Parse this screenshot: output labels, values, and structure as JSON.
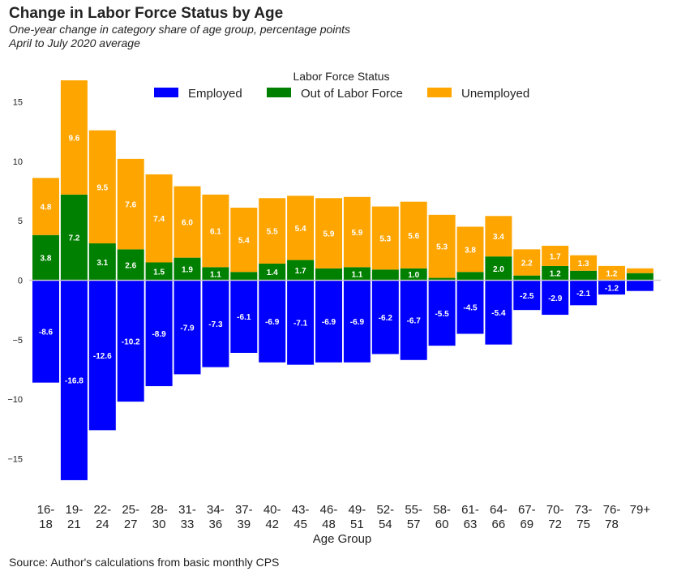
{
  "header": {
    "title": "Change in Labor Force Status by Age",
    "subtitle": "One-year change in category share of age group, percentage points",
    "subtitle2": "April to July 2020 average"
  },
  "footer": {
    "source": "Source: Author's calculations from basic monthly CPS"
  },
  "chart_data": {
    "type": "bar",
    "stacked": true,
    "title": "Change in Labor Force Status by Age",
    "xlabel": "Age Group",
    "ylabel": "",
    "ylim": [
      -17.8,
      17.8
    ],
    "yticks": [
      -15,
      -10,
      -5,
      0,
      5,
      10,
      15
    ],
    "grid": false,
    "legend": {
      "title": "Labor Force Status",
      "placement": "top-center"
    },
    "categories": [
      [
        "16-",
        "18"
      ],
      [
        "19-",
        "21"
      ],
      [
        "22-",
        "24"
      ],
      [
        "25-",
        "27"
      ],
      [
        "28-",
        "30"
      ],
      [
        "31-",
        "33"
      ],
      [
        "34-",
        "36"
      ],
      [
        "37-",
        "39"
      ],
      [
        "40-",
        "42"
      ],
      [
        "43-",
        "45"
      ],
      [
        "46-",
        "48"
      ],
      [
        "49-",
        "51"
      ],
      [
        "52-",
        "54"
      ],
      [
        "55-",
        "57"
      ],
      [
        "58-",
        "60"
      ],
      [
        "61-",
        "63"
      ],
      [
        "64-",
        "66"
      ],
      [
        "67-",
        "69"
      ],
      [
        "70-",
        "72"
      ],
      [
        "73-",
        "75"
      ],
      [
        "76-",
        "78"
      ],
      [
        "79+",
        ""
      ]
    ],
    "series": [
      {
        "name": "Employed",
        "color": "#0000ff",
        "values": [
          -8.6,
          -16.8,
          -12.6,
          -10.2,
          -8.9,
          -7.9,
          -7.3,
          -6.1,
          -6.9,
          -7.1,
          -6.9,
          -6.9,
          -6.2,
          -6.7,
          -5.5,
          -4.5,
          -5.4,
          -2.5,
          -2.9,
          -2.1,
          -1.2,
          -0.9
        ],
        "labels": [
          "-8.6",
          "-16.8",
          "-12.6",
          "-10.2",
          "-8.9",
          "-7.9",
          "-7.3",
          "-6.1",
          "-6.9",
          "-7.1",
          "-6.9",
          "-6.9",
          "-6.2",
          "-6.7",
          "-5.5",
          "-4.5",
          "-5.4",
          "-2.5",
          "-2.9",
          "-2.1",
          "-1.2",
          ""
        ]
      },
      {
        "name": "Out of Labor Force",
        "color": "#008000",
        "values": [
          3.8,
          7.2,
          3.1,
          2.6,
          1.5,
          1.9,
          1.1,
          0.7,
          1.4,
          1.7,
          1.0,
          1.1,
          0.9,
          1.0,
          0.2,
          0.7,
          2.0,
          0.4,
          1.2,
          0.8,
          0.0,
          0.6
        ],
        "labels": [
          "3.8",
          "7.2",
          "3.1",
          "2.6",
          "1.5",
          "1.9",
          "1.1",
          "",
          "1.4",
          "1.7",
          "",
          "1.1",
          "",
          "1.0",
          "",
          "",
          "2.0",
          "",
          "1.2",
          "",
          "",
          ""
        ]
      },
      {
        "name": "Unemployed",
        "color": "#ffa500",
        "values": [
          4.8,
          9.6,
          9.5,
          7.6,
          7.4,
          6.0,
          6.1,
          5.4,
          5.5,
          5.4,
          5.9,
          5.9,
          5.3,
          5.6,
          5.3,
          3.8,
          3.4,
          2.2,
          1.7,
          1.3,
          1.2,
          0.4
        ],
        "labels": [
          "4.8",
          "9.6",
          "9.5",
          "7.6",
          "7.4",
          "6.0",
          "6.1",
          "5.4",
          "5.5",
          "5.4",
          "5.9",
          "5.9",
          "5.3",
          "5.6",
          "5.3",
          "3.8",
          "3.4",
          "2.2",
          "1.7",
          "1.3",
          "1.2",
          ""
        ]
      }
    ]
  }
}
